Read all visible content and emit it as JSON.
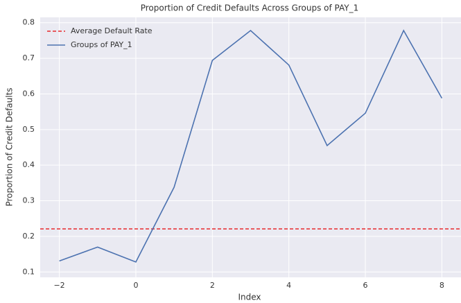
{
  "chart_data": {
    "type": "line",
    "title": "Proportion of Credit Defaults Across Groups of PAY_1",
    "xlabel": "Index",
    "ylabel": "Proportion of Credit Defaults",
    "x": [
      -2,
      -1,
      0,
      1,
      2,
      3,
      4,
      5,
      6,
      7,
      8
    ],
    "series": [
      {
        "name": "Groups of PAY_1",
        "color": "#4c72b0",
        "values": [
          0.131,
          0.17,
          0.128,
          0.338,
          0.694,
          0.778,
          0.681,
          0.455,
          0.546,
          0.778,
          0.588
        ]
      }
    ],
    "reference_line": {
      "name": "Average Default Rate",
      "value": 0.221,
      "color": "#e8292b"
    },
    "xlim": [
      -2.5,
      8.5
    ],
    "xticks": [
      {
        "value": -2,
        "label": "−2"
      },
      0,
      2,
      4,
      6,
      8
    ],
    "ylim": [
      0.085,
      0.815
    ],
    "yticks": [
      0.1,
      0.2,
      0.3,
      0.4,
      0.5,
      0.6,
      0.7,
      0.8
    ],
    "grid": true,
    "legend": "upper-left"
  }
}
